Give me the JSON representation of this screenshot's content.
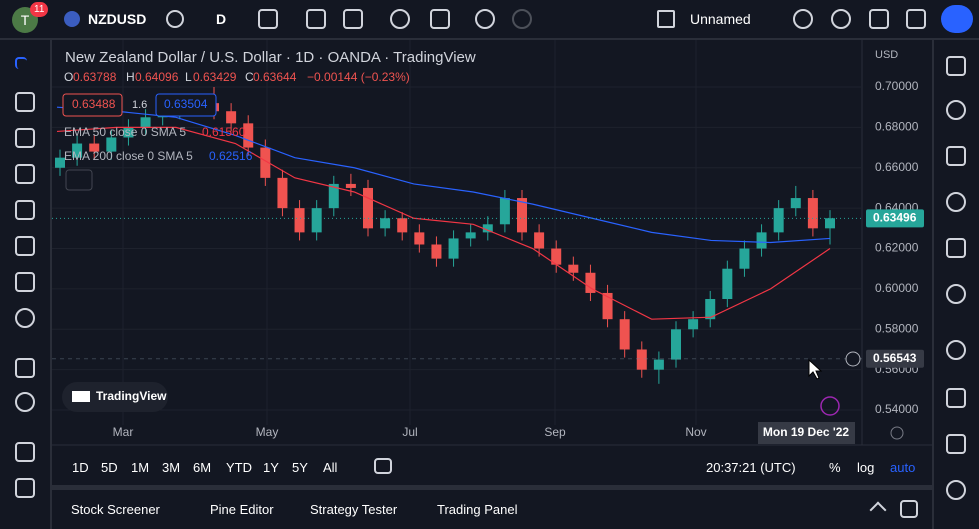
{
  "toolbar": {
    "badge": "11",
    "avatar": "T",
    "symbol": "NZDUSD",
    "interval": "D",
    "layout": "Unnamed"
  },
  "legend": {
    "o_label": "O",
    "o": "0.63788",
    "h_label": "H",
    "h": "0.64096",
    "l_label": "L",
    "l": "0.63429",
    "c_label": "C",
    "c": "0.63644",
    "change": "−0.00144 (−0.23%)",
    "sell": "0.63488",
    "spread": "1.6",
    "buy": "0.63504"
  },
  "chart_data": {
    "type": "candlestick",
    "title": "New Zealand Dollar / U.S. Dollar · 1D · OANDA · TradingView",
    "currency": "USD",
    "open": [
      0.66,
      0.665,
      0.672,
      0.668,
      0.675,
      0.68,
      0.685,
      0.688,
      0.69,
      0.692,
      0.688,
      0.682,
      0.67,
      0.655,
      0.64,
      0.628,
      0.64,
      0.652,
      0.65,
      0.63,
      0.635,
      0.628,
      0.622,
      0.615,
      0.625,
      0.628,
      0.632,
      0.645,
      0.628,
      0.62,
      0.612,
      0.608,
      0.598,
      0.585,
      0.57,
      0.56,
      0.565,
      0.58,
      0.585,
      0.595,
      0.61,
      0.62,
      0.628,
      0.64,
      0.645,
      0.63
    ],
    "high": [
      0.669,
      0.676,
      0.676,
      0.679,
      0.684,
      0.689,
      0.692,
      0.694,
      0.696,
      0.7,
      0.692,
      0.686,
      0.674,
      0.659,
      0.644,
      0.644,
      0.656,
      0.657,
      0.654,
      0.639,
      0.638,
      0.632,
      0.626,
      0.629,
      0.632,
      0.636,
      0.649,
      0.649,
      0.632,
      0.624,
      0.616,
      0.612,
      0.602,
      0.589,
      0.574,
      0.569,
      0.584,
      0.589,
      0.599,
      0.614,
      0.624,
      0.632,
      0.644,
      0.651,
      0.649,
      0.639
    ],
    "low": [
      0.656,
      0.661,
      0.664,
      0.664,
      0.671,
      0.676,
      0.681,
      0.684,
      0.686,
      0.684,
      0.678,
      0.666,
      0.651,
      0.636,
      0.624,
      0.624,
      0.636,
      0.646,
      0.626,
      0.626,
      0.624,
      0.618,
      0.611,
      0.611,
      0.621,
      0.624,
      0.628,
      0.624,
      0.616,
      0.608,
      0.604,
      0.594,
      0.581,
      0.566,
      0.556,
      0.553,
      0.561,
      0.576,
      0.581,
      0.591,
      0.606,
      0.616,
      0.624,
      0.636,
      0.626,
      0.622
    ],
    "close": [
      0.665,
      0.672,
      0.668,
      0.675,
      0.68,
      0.685,
      0.688,
      0.69,
      0.692,
      0.688,
      0.682,
      0.67,
      0.655,
      0.64,
      0.628,
      0.64,
      0.652,
      0.65,
      0.63,
      0.635,
      0.628,
      0.622,
      0.615,
      0.625,
      0.628,
      0.632,
      0.645,
      0.628,
      0.62,
      0.612,
      0.608,
      0.598,
      0.585,
      0.57,
      0.56,
      0.565,
      0.58,
      0.585,
      0.595,
      0.61,
      0.62,
      0.628,
      0.64,
      0.645,
      0.63,
      0.635
    ],
    "up_color": "#26a69a",
    "down_color": "#ef5350",
    "series": [
      {
        "name": "EMA 50 close 0 SMA 5",
        "color": "#f23645",
        "last": "0.61560",
        "values": [
          0.678,
          0.68,
          0.68,
          0.672,
          0.655,
          0.648,
          0.635,
          0.632,
          0.62,
          0.6,
          0.585,
          0.586,
          0.6,
          0.62
        ]
      },
      {
        "name": "EMA 200 close 0 SMA 5",
        "color": "#2962ff",
        "last": "0.62516",
        "values": [
          0.69,
          0.688,
          0.685,
          0.676,
          0.665,
          0.66,
          0.652,
          0.648,
          0.642,
          0.635,
          0.628,
          0.624,
          0.623,
          0.625
        ]
      }
    ],
    "ylim": [
      0.5326,
      0.7208
    ],
    "yticks": [
      {
        "value": 0.7,
        "label": "0.70000"
      },
      {
        "value": 0.68,
        "label": "0.68000"
      },
      {
        "value": 0.66,
        "label": "0.66000"
      },
      {
        "value": 0.64,
        "label": "0.64000"
      },
      {
        "value": 0.62,
        "label": "0.62000"
      },
      {
        "value": 0.6,
        "label": "0.60000"
      },
      {
        "value": 0.58,
        "label": "0.58000"
      },
      {
        "value": 0.56,
        "label": "0.56000"
      },
      {
        "value": 0.54,
        "label": "0.54000"
      }
    ],
    "last_price": {
      "value": 0.63496,
      "label": "0.63496"
    },
    "crosshair_price": {
      "value": 0.56543,
      "label": "0.56543"
    },
    "x_labels": [
      "Mar",
      "May",
      "Jul",
      "Sep",
      "Nov"
    ],
    "crosshair_date": "Mon 19 Dec '22",
    "watermark": "TradingView"
  },
  "ranges": [
    "1D",
    "5D",
    "1M",
    "3M",
    "6M",
    "YTD",
    "1Y",
    "5Y",
    "All"
  ],
  "status": {
    "time": "20:37:21 (UTC)",
    "percent": "%",
    "log": "log",
    "auto": "auto"
  },
  "panel_tabs": [
    "Stock Screener",
    "Pine Editor",
    "Strategy Tester",
    "Trading Panel"
  ]
}
